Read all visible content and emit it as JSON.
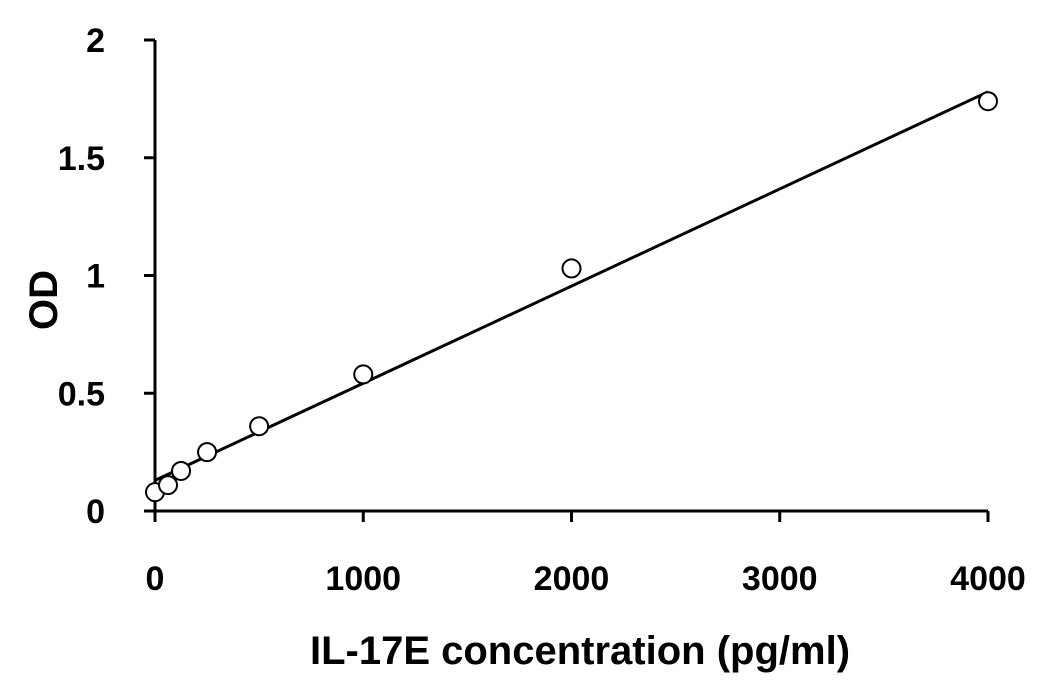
{
  "chart_data": {
    "type": "scatter",
    "title": "",
    "xlabel": "IL-17E concentration (pg/ml)",
    "ylabel": "OD",
    "xlim": [
      0,
      4000
    ],
    "ylim": [
      0,
      2
    ],
    "x_ticks": [
      0,
      1000,
      2000,
      3000,
      4000
    ],
    "x_tick_labels": [
      "0",
      "1000",
      "2000",
      "3000",
      "4000"
    ],
    "y_ticks": [
      0,
      0.5,
      1,
      1.5,
      2
    ],
    "y_tick_labels": [
      "0",
      "0.5",
      "1",
      "1.5",
      "2"
    ],
    "grid": false,
    "legend": "none",
    "series": [
      {
        "points": [
          {
            "x": 0,
            "y": 0.08
          },
          {
            "x": 62.5,
            "y": 0.11
          },
          {
            "x": 125,
            "y": 0.17
          },
          {
            "x": 250,
            "y": 0.25
          },
          {
            "x": 500,
            "y": 0.36
          },
          {
            "x": 1000,
            "y": 0.58
          },
          {
            "x": 2000,
            "y": 1.03
          },
          {
            "x": 4000,
            "y": 1.74
          }
        ],
        "marker": "open-circle",
        "marker_color": "#000000"
      }
    ],
    "trendline": {
      "type": "linear",
      "x": [
        0,
        4000
      ],
      "y": [
        0.13,
        1.78
      ],
      "color": "#000000"
    }
  }
}
